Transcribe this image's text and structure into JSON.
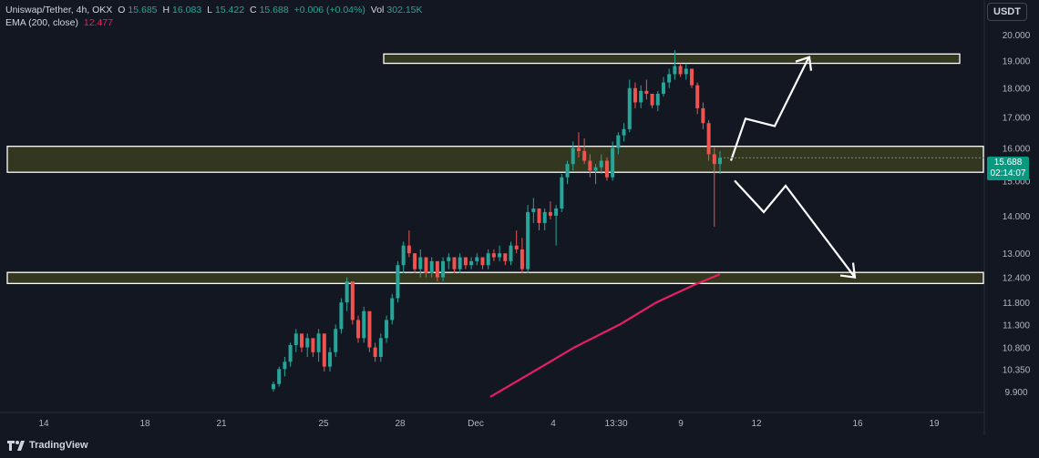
{
  "header": {
    "symbol": "Uniswap/Tether, 4h, OKX",
    "o_label": "O",
    "o_value": "15.685",
    "h_label": "H",
    "h_value": "16.083",
    "l_label": "L",
    "l_value": "15.422",
    "c_label": "C",
    "c_value": "15.688",
    "change": "+0.006 (+0.04%)",
    "vol_label": "Vol",
    "vol_value": "302.15K",
    "ema_label": "EMA (200, close)",
    "ema_value": "12.477"
  },
  "currency_button": "USDT",
  "price_tag": {
    "price": "15.688",
    "countdown": "02:14:07"
  },
  "brand": "TradingView",
  "colors": {
    "background": "#131722",
    "up": "#26a69a",
    "down": "#ef5350",
    "ema": "#e91e63",
    "zone_fill": "#3a3d1f",
    "zone_border": "#ffffff",
    "tag": "#089981"
  },
  "chart_data": {
    "type": "candlestick",
    "y_scale": "log",
    "y_ticks": [
      "20.000",
      "19.000",
      "18.000",
      "17.000",
      "16.000",
      "15.000",
      "14.000",
      "13.000",
      "12.400",
      "11.800",
      "11.300",
      "10.800",
      "10.350",
      "9.900"
    ],
    "x_ticks": [
      "14",
      "18",
      "21",
      "25",
      "28",
      "Dec",
      "4",
      "13:30",
      "9",
      "12",
      "16",
      "19"
    ],
    "zones": [
      {
        "low": 18.9,
        "high": 19.25
      },
      {
        "low": 15.25,
        "high": 16.05
      },
      {
        "low": 12.25,
        "high": 12.52
      }
    ],
    "annotations": {
      "up_path": [
        15.6,
        16.95,
        16.7,
        19.1
      ],
      "down_path": [
        15.0,
        14.1,
        14.85,
        12.4
      ]
    },
    "ema_200": [
      9.8,
      10.35,
      10.8,
      11.3,
      11.8,
      12.2,
      12.477
    ],
    "last_close": 15.688
  }
}
